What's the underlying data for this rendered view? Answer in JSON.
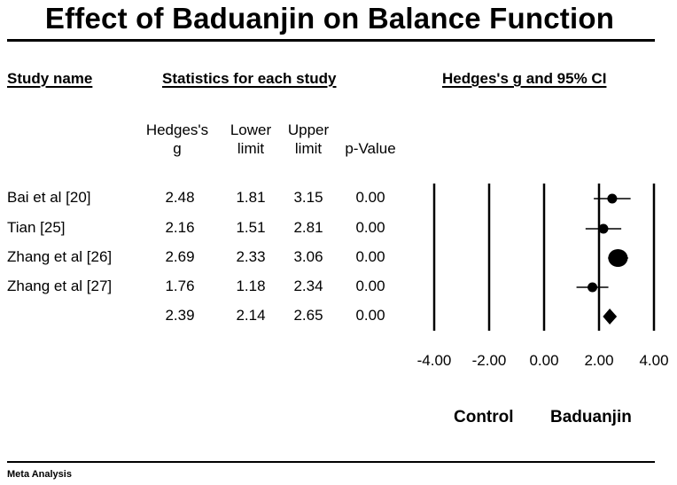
{
  "title": "Effect of Baduanjin on Balance Function",
  "headers": {
    "study_name": "Study name",
    "statistics": "Statistics for each study",
    "plot": "Hedges's g and 95% CI"
  },
  "columns": {
    "g_line1": "Hedges's",
    "g_line2": "g",
    "lower_line1": "Lower",
    "lower_line2": "limit",
    "upper_line1": "Upper",
    "upper_line2": "limit",
    "p_line2": "p-Value"
  },
  "rows": [
    {
      "study": "Bai et al  [20]",
      "g": "2.48",
      "lower": "1.81",
      "upper": "3.15",
      "p": "0.00"
    },
    {
      "study": "Tian [25]",
      "g": "2.16",
      "lower": "1.51",
      "upper": "2.81",
      "p": "0.00"
    },
    {
      "study": "Zhang et al [26]",
      "g": "2.69",
      "lower": "2.33",
      "upper": "3.06",
      "p": "0.00"
    },
    {
      "study": "Zhang et al [27]",
      "g": "1.76",
      "lower": "1.18",
      "upper": "2.34",
      "p": "0.00"
    },
    {
      "study": "",
      "g": "2.39",
      "lower": "2.14",
      "upper": "2.65",
      "p": "0.00"
    }
  ],
  "labels": {
    "favors_left": "Control",
    "favors_right": "Baduanjin",
    "footer": "Meta Analysis"
  },
  "chart_data": {
    "type": "forest",
    "x_ticks": [
      "-4.00",
      "-2.00",
      "0.00",
      "2.00",
      "4.00"
    ],
    "xlim": [
      -4,
      4
    ],
    "studies": [
      {
        "name": "Bai et al  [20]",
        "g": 2.48,
        "lower": 1.81,
        "upper": 3.15,
        "weight": "medium"
      },
      {
        "name": "Tian [25]",
        "g": 2.16,
        "lower": 1.51,
        "upper": 2.81,
        "weight": "medium"
      },
      {
        "name": "Zhang et al [26]",
        "g": 2.69,
        "lower": 2.33,
        "upper": 3.06,
        "weight": "large"
      },
      {
        "name": "Zhang et al [27]",
        "g": 1.76,
        "lower": 1.18,
        "upper": 2.34,
        "weight": "medium"
      }
    ],
    "summary": {
      "g": 2.39,
      "lower": 2.14,
      "upper": 2.65
    }
  }
}
